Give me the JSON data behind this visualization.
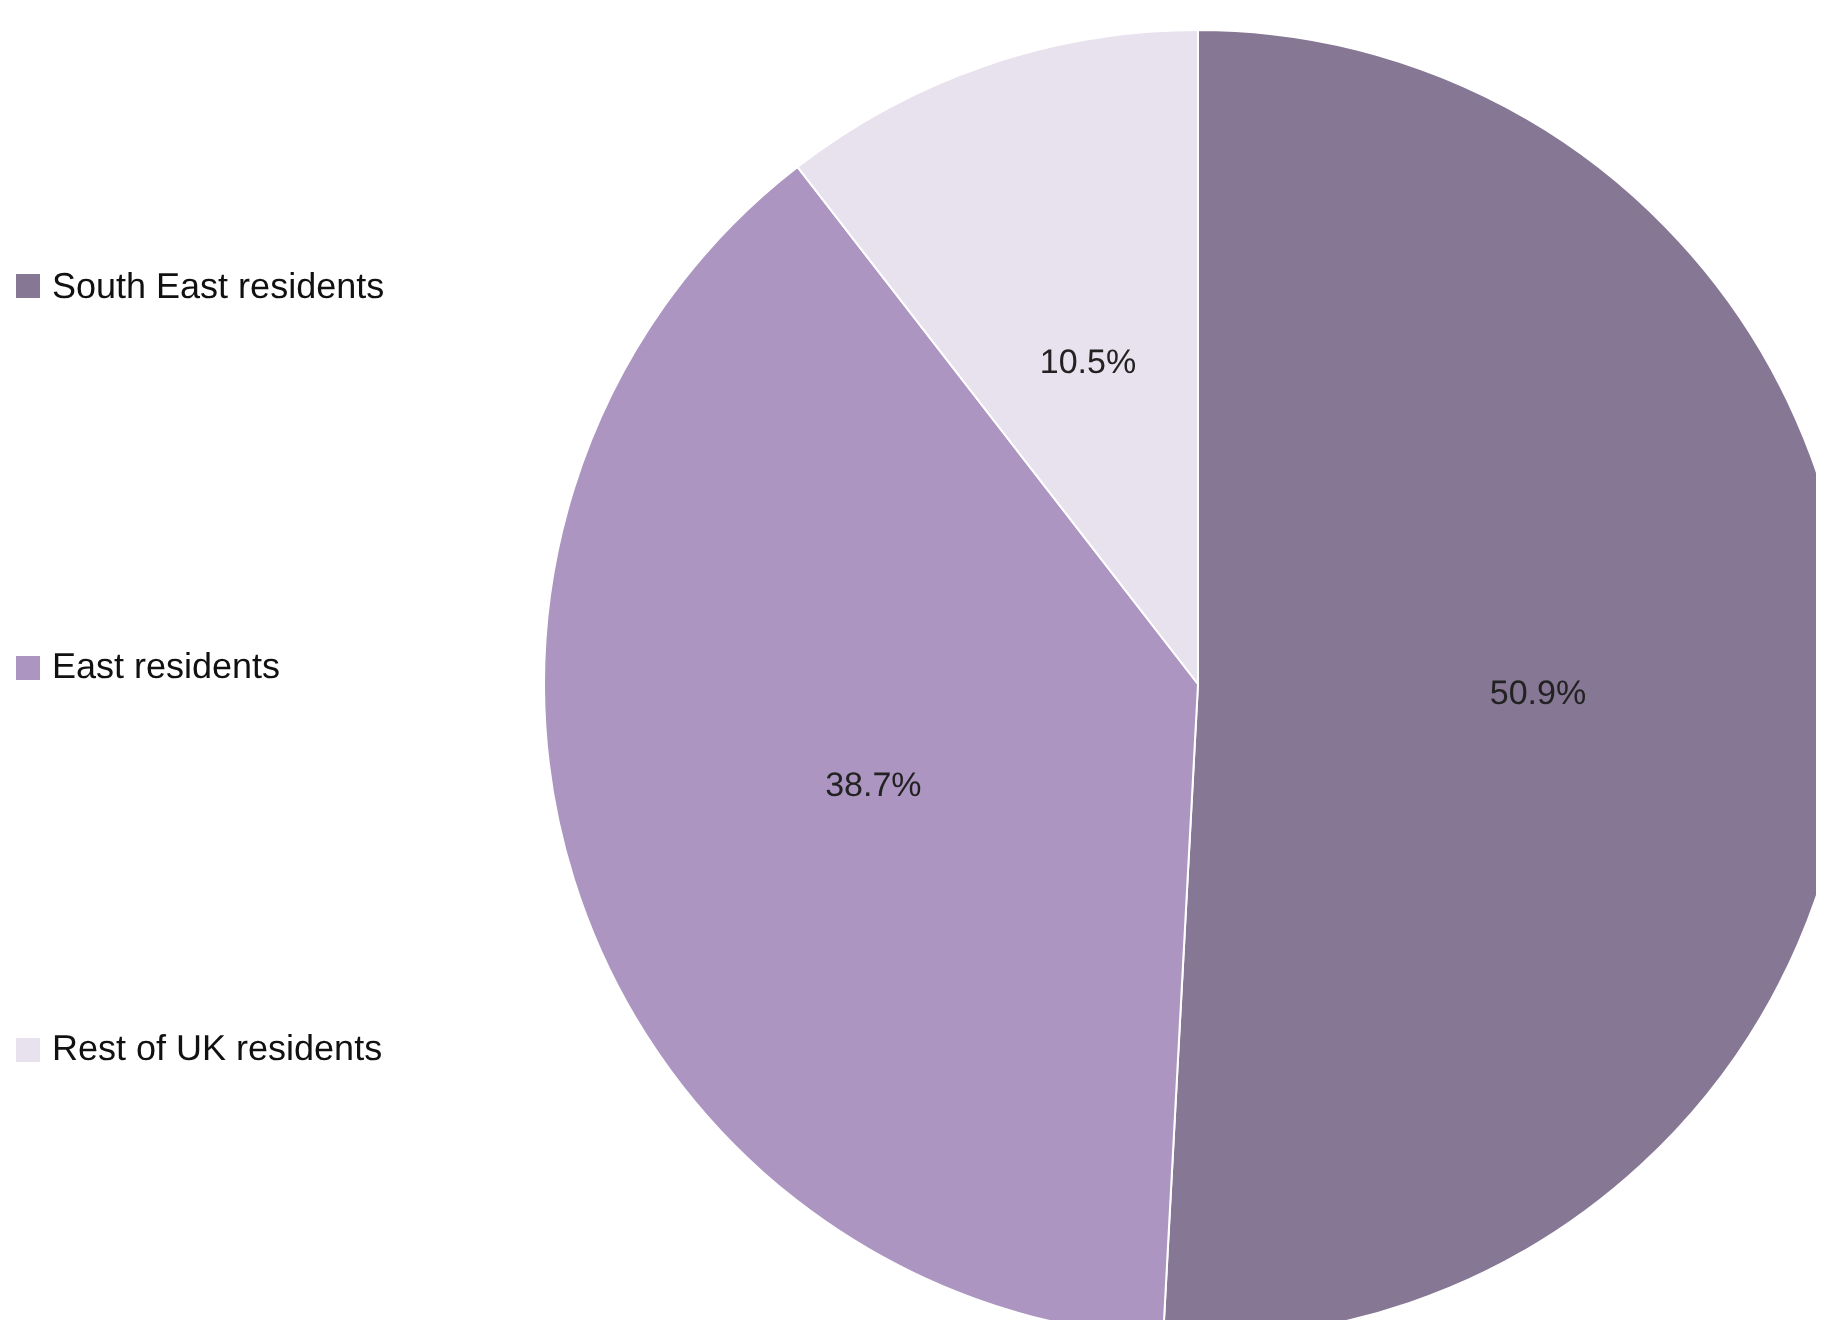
{
  "chart_data": {
    "type": "pie",
    "categories": [
      "South East residents",
      "East residents",
      "Rest of UK residents"
    ],
    "values": [
      50.9,
      38.7,
      10.5
    ],
    "colors": [
      "#867794",
      "#ac96c1",
      "#e8e1ee"
    ],
    "value_labels": [
      "50.9%",
      "38.7%",
      "10.5%"
    ],
    "legend": "left"
  }
}
